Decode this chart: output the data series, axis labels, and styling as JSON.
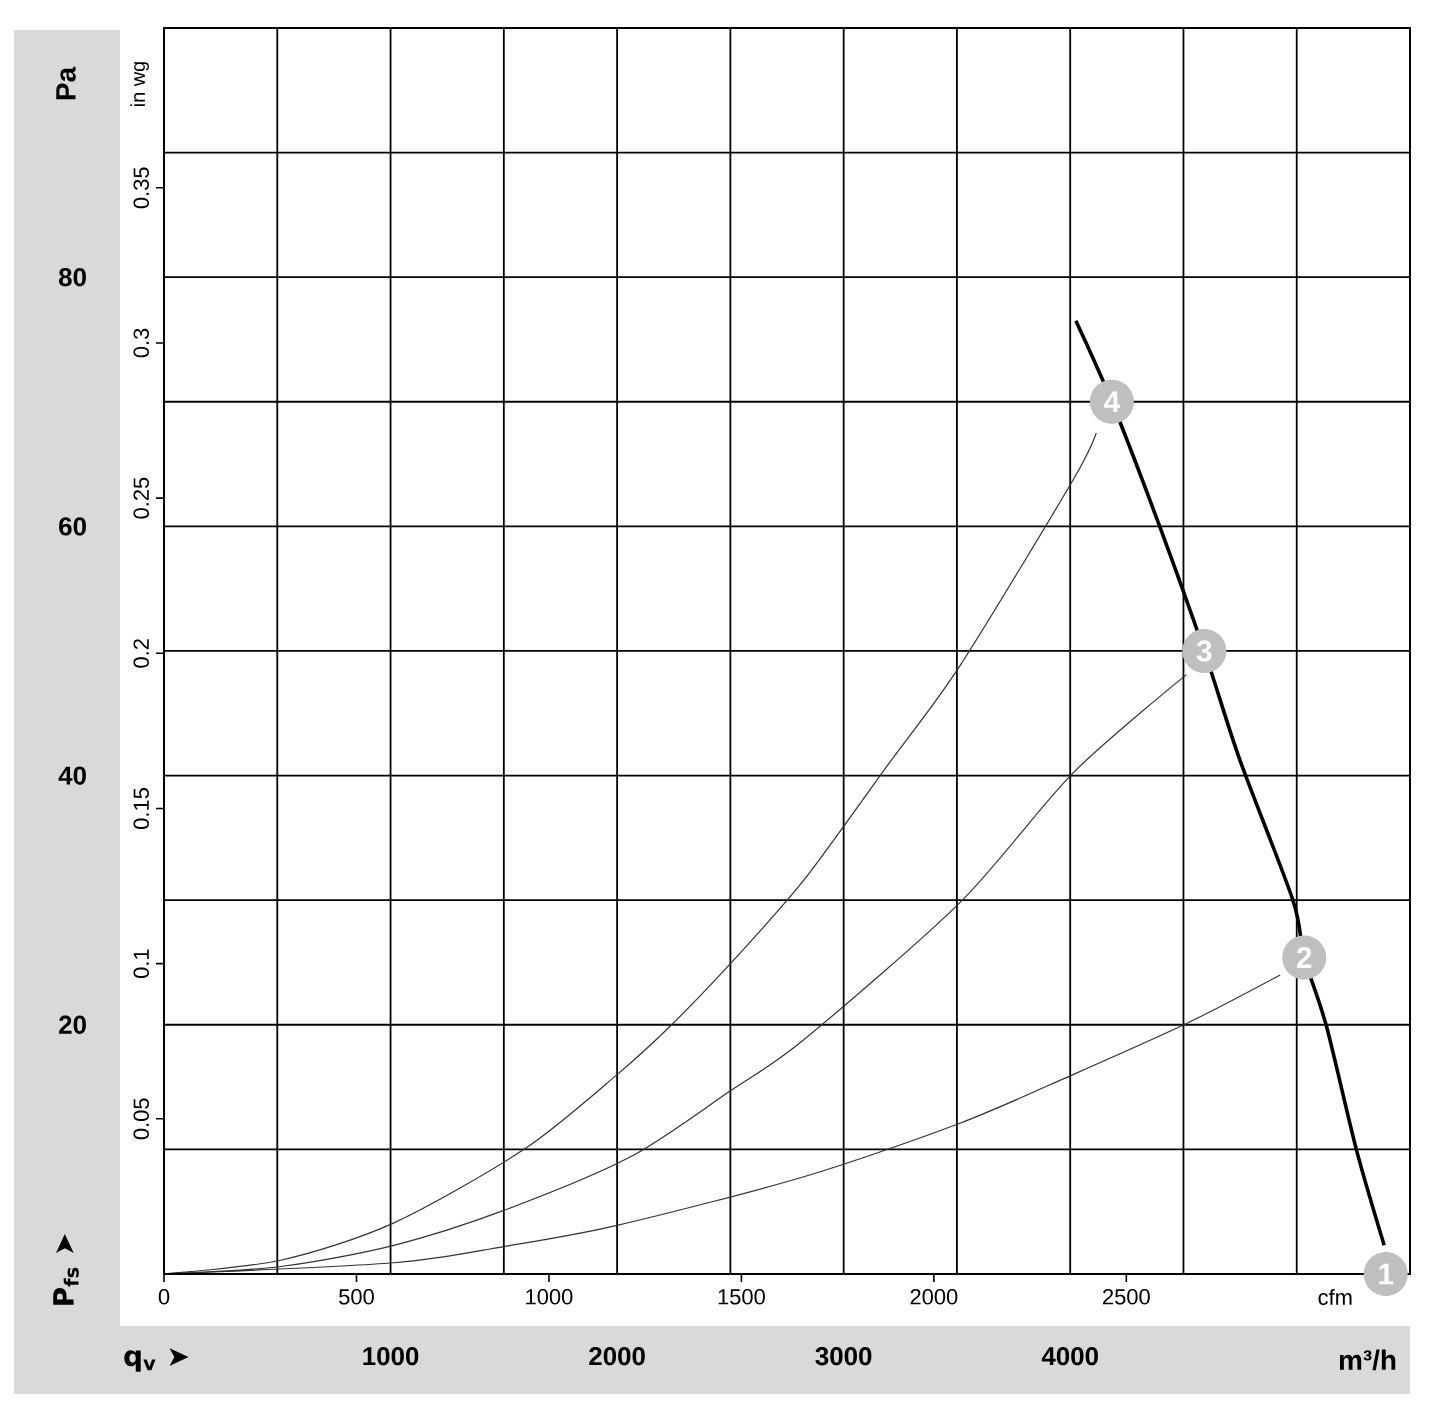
{
  "chart_data": {
    "type": "line",
    "xlabel": "m³/h",
    "ylabel": "Pa",
    "x2label": "cfm",
    "y2label": "in wg",
    "xlim": [
      0,
      5500
    ],
    "xticks": [
      {
        "value": 0,
        "label": null
      },
      {
        "value": 500,
        "label": null
      },
      1000,
      {
        "value": 1500,
        "label": null
      },
      2000,
      {
        "value": 2500,
        "label": null
      },
      3000,
      {
        "value": 3500,
        "label": null
      },
      4000,
      {
        "value": 4500,
        "label": null
      },
      {
        "value": 5000,
        "label": null
      },
      {
        "value": 5500,
        "label": null
      }
    ],
    "ylim": [
      0,
      100
    ],
    "yticks": [
      {
        "value": 0,
        "label": null
      },
      {
        "value": 10,
        "label": null
      },
      20,
      {
        "value": 30,
        "label": null
      },
      40,
      {
        "value": 50,
        "label": null
      },
      60,
      {
        "value": 70,
        "label": null
      },
      80,
      {
        "value": 90,
        "label": null
      },
      {
        "value": 100,
        "label": null
      }
    ],
    "x2lim": [
      0,
      3237
    ],
    "x2ticks": [
      0,
      500,
      1000,
      1500,
      2000,
      2500
    ],
    "y2lim": [
      0,
      0.4015
    ],
    "y2ticks": [
      0.05,
      0.1,
      0.15,
      0.2,
      0.25,
      0.3,
      0.35
    ],
    "grid": true,
    "series": [
      {
        "color": "#000000",
        "x": [
          4025,
          4184,
          4395,
          4592,
          4748,
          4983,
          5033,
          5131,
          5263,
          5386
        ],
        "values": [
          76.5,
          70,
          60,
          50,
          41.3,
          30,
          25.4,
          19.9,
          10,
          2.3
        ]
      },
      {
        "color": "#333333",
        "x": [
          0,
          515,
          1015,
          1589,
          2000,
          2235,
          2500,
          2824,
          3189,
          3513,
          4012,
          4115
        ],
        "values": [
          0,
          1.1,
          4.1,
          10,
          16,
          19.9,
          24.9,
          31.6,
          40.7,
          48.8,
          63.7,
          67.5
        ]
      },
      {
        "color": "#333333",
        "x": [
          0,
          515,
          1015,
          1500,
          2059,
          2500,
          2824,
          3513,
          4012,
          4513
        ],
        "values": [
          0,
          0.6,
          2.3,
          5.1,
          9.4,
          14.7,
          18.8,
          29.8,
          40.2,
          48.1
        ]
      },
      {
        "color": "#333333",
        "x": [
          0,
          1015,
          1500,
          2000,
          2824,
          3513,
          4012,
          4513,
          4927
        ],
        "values": [
          0,
          0.9,
          2.2,
          3.9,
          7.8,
          12.1,
          16,
          20.1,
          24
        ]
      }
    ],
    "annotations": [
      "q$_{v}$ ➤",
      "P$_{fs}$ ➤",
      {
        "text": "1",
        "x": 5393,
        "y": 0
      },
      {
        "text": "2",
        "x": 5033,
        "y": 25.4
      },
      {
        "text": "3",
        "x": 4592,
        "y": 50
      },
      {
        "text": "4",
        "x": 4184,
        "y": 70
      }
    ]
  }
}
